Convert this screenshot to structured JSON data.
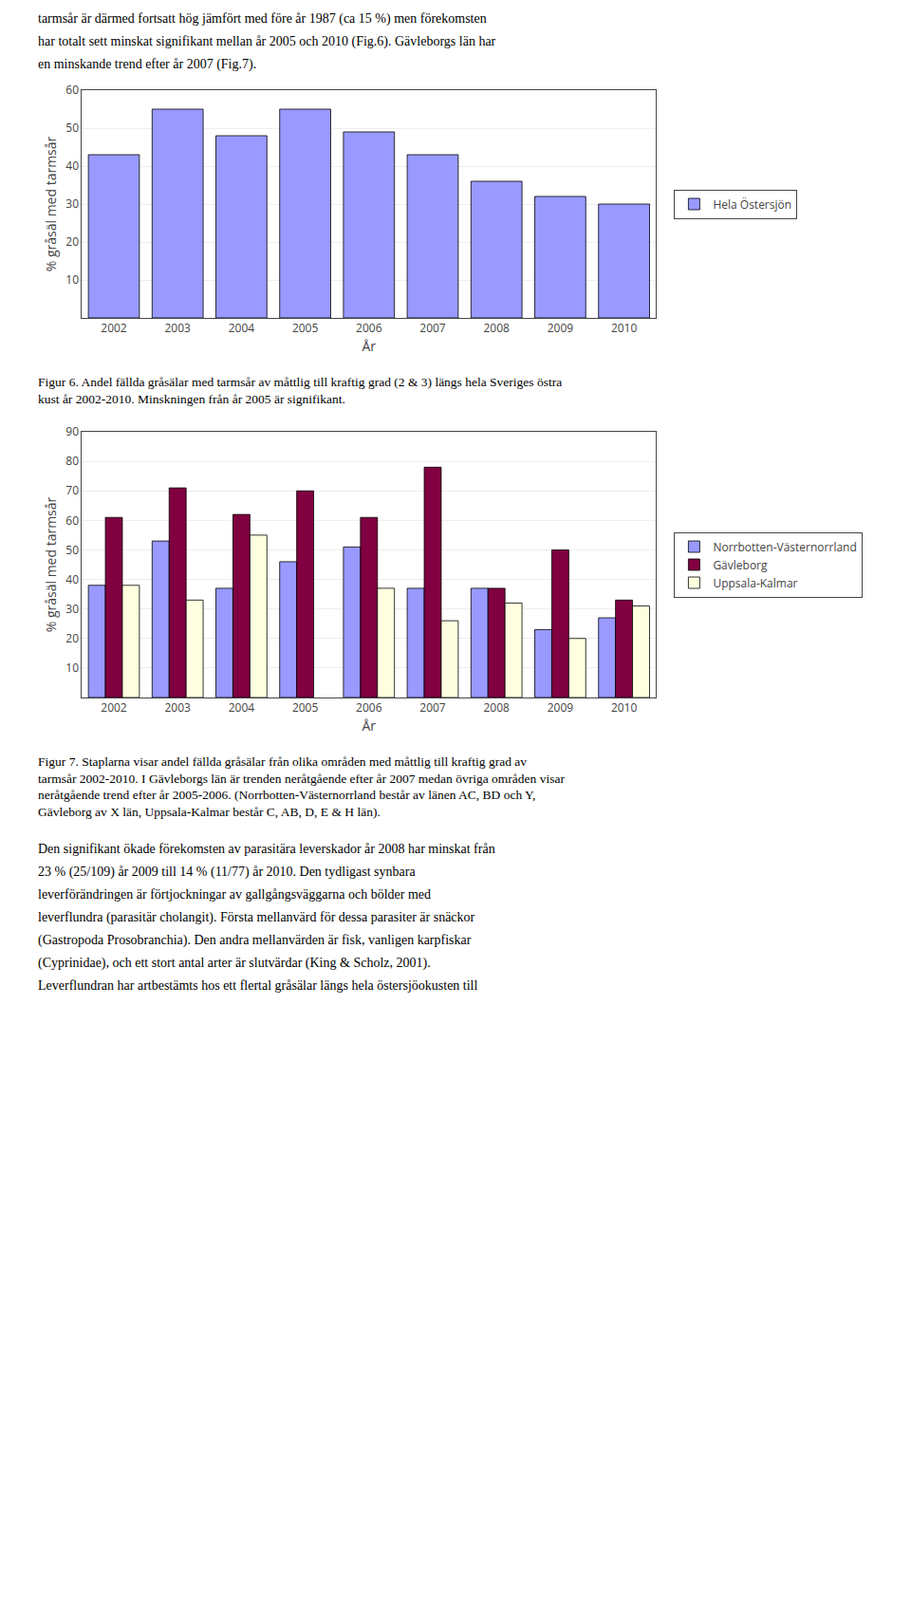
{
  "chart_data": [
    {
      "type": "bar",
      "annotations": [
        "tarmsår är därmed fortsatt hög jämfört med före år 1987 (ca 15 %) men förekomsten",
        "har totalt sett minskat signifikant mellan år 2005 och 2010 (Fig.6). Gävleborgs län har",
        "en minskande trend efter år 2007 (Fig.7)."
      ],
      "title": "Figur 6. Andel fällda gråsälar med tarmsår av måttlig till kraftig grad (2 & 3) längs hela Sveriges östra\nkust år 2002-2010. Minskningen från år 2005 är signifikant.",
      "xlabel": "År",
      "ylabel": "% gråsäl med tarmsår",
      "categories": [
        "2002",
        "2003",
        "2004",
        "2005",
        "2006",
        "2007",
        "2008",
        "2009",
        "2010"
      ],
      "series": [
        {
          "name": "Hela Östersjön",
          "color": "#9999ff",
          "values": [
            43,
            55,
            48,
            55,
            49,
            43,
            36,
            32,
            30
          ]
        }
      ],
      "ylim": [
        0,
        60
      ],
      "yticks": [
        10,
        20,
        30,
        40,
        50,
        60
      ],
      "grid": true,
      "legend": "right"
    },
    {
      "type": "bar",
      "title": "Figur 7. Staplarna visar andel fällda gråsälar från olika områden med måttlig till kraftig grad av\ntarmsår 2002-2010. I Gävleborgs län är trenden neråtgående efter år 2007 medan övriga områden visar\nneråtgående trend efter år 2005-2006. (Norrbotten-Västernorrland består av länen AC, BD och Y,\nGävleborg av X län, Uppsala-Kalmar består C, AB, D, E & H län).",
      "annotations": [
        "Den signifikant ökade förekomsten av parasitära leverskador år 2008 har minskat från",
        "23 % (25/109) år 2009 till 14 % (11/77) år 2010. Den tydligast synbara",
        "leverförändringen är förtjockningar av gallgångsväggarna och bölder med",
        "leverflundra (parasitär cholangit). Första mellanvärd för dessa parasiter är snäckor",
        "(Gastropoda Prosobranchia). Den andra mellanvärden är fisk, vanligen karpfiskar",
        "(Cyprinidae), och ett stort antal arter är slutvärdar (King & Scholz, 2001).",
        "Leverflundran har artbestämts hos ett flertal gråsälar längs hela östersjöokusten till"
      ],
      "xlabel": "År",
      "ylabel": "% gråsäl med tarmsår",
      "categories": [
        "2002",
        "2003",
        "2004",
        "2005",
        "2006",
        "2007",
        "2008",
        "2009",
        "2010"
      ],
      "series": [
        {
          "name": "Norrbotten-Västernorrland",
          "color": "#9999ff",
          "values": [
            38,
            53,
            37,
            46,
            51,
            37,
            37,
            23,
            27
          ]
        },
        {
          "name": "Gävleborg",
          "color": "#800040",
          "values": [
            61,
            71,
            62,
            70,
            61,
            78,
            37,
            50,
            33
          ]
        },
        {
          "name": "Uppsala-Kalmar",
          "color": "#ffffe0",
          "values": [
            38,
            33,
            55,
            null,
            37,
            26,
            32,
            20,
            31
          ]
        }
      ],
      "ylim": [
        0,
        90
      ],
      "yticks": [
        10,
        20,
        30,
        40,
        50,
        60,
        70,
        80,
        90
      ],
      "grid": true,
      "legend": "right"
    }
  ]
}
